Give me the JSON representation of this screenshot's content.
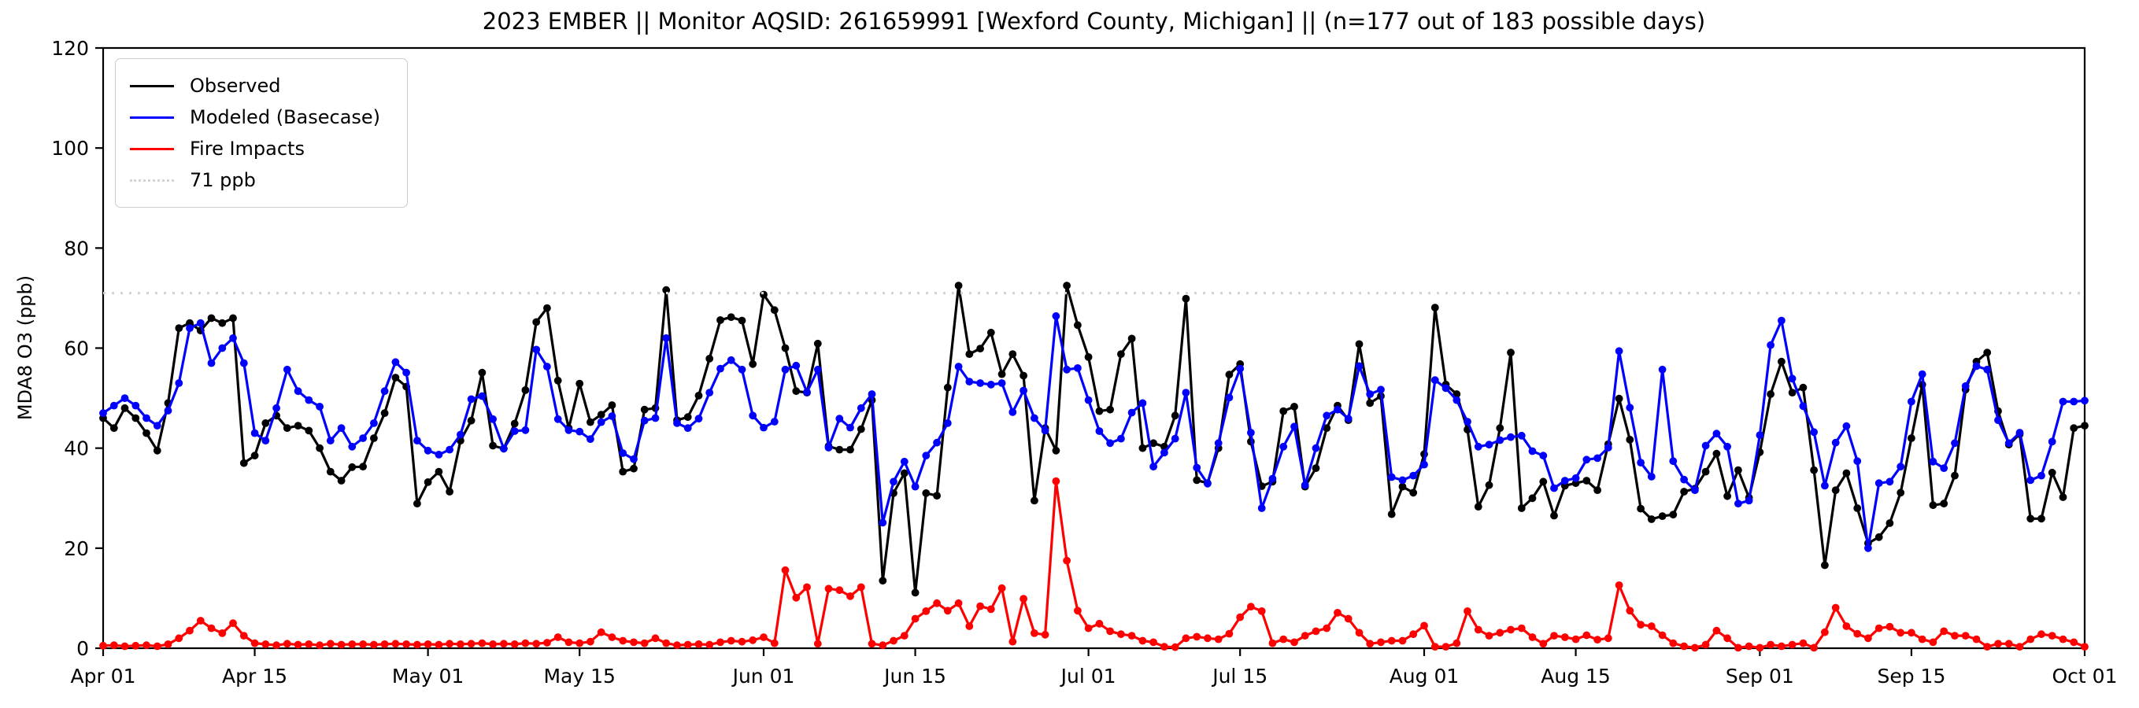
{
  "title": "2023 EMBER || Monitor AQSID: 261659991 [Wexford County, Michigan] || (n=177 out of 183 possible days)",
  "y_axis": {
    "label": "MDA8 O3 (ppb)",
    "min": 0,
    "max": 120,
    "ticks": [
      0,
      20,
      40,
      60,
      80,
      100,
      120
    ]
  },
  "x_axis": {
    "x_unit": "days since Apr 01, 2023",
    "total_days": 183,
    "ticks": [
      {
        "label": "Apr 01",
        "day": 0
      },
      {
        "label": "Apr 15",
        "day": 14
      },
      {
        "label": "May 01",
        "day": 30
      },
      {
        "label": "May 15",
        "day": 44
      },
      {
        "label": "Jun 01",
        "day": 61
      },
      {
        "label": "Jun 15",
        "day": 75
      },
      {
        "label": "Jul 01",
        "day": 91
      },
      {
        "label": "Jul 15",
        "day": 105
      },
      {
        "label": "Aug 01",
        "day": 122
      },
      {
        "label": "Aug 15",
        "day": 136
      },
      {
        "label": "Sep 01",
        "day": 153
      },
      {
        "label": "Sep 15",
        "day": 167
      },
      {
        "label": "Oct 01",
        "day": 183
      }
    ]
  },
  "threshold": {
    "value": 71,
    "label": "71 ppb",
    "color": "#d3d3d3",
    "style": "dotted"
  },
  "legend": {
    "items": [
      {
        "label": "Observed",
        "color": "#000000",
        "style": "solid"
      },
      {
        "label": "Modeled (Basecase)",
        "color": "#0000ff",
        "style": "solid"
      },
      {
        "label": "Fire Impacts",
        "color": "#ff0000",
        "style": "solid"
      },
      {
        "label": "71 ppb",
        "color": "#d3d3d3",
        "style": "dotted"
      }
    ]
  },
  "chart_data": {
    "type": "line",
    "title": "2023 EMBER || Monitor AQSID: 261659991 [Wexford County, Michigan] || (n=177 out of 183 possible days)",
    "xlabel": "",
    "ylabel": "MDA8 O3 (ppb)",
    "ylim": [
      0,
      120
    ],
    "x_unit": "day index from Apr 01 2023 (0) to Oct 01 2023 (183)",
    "grid": false,
    "legend_position": "upper left",
    "markers": true,
    "series": [
      {
        "name": "Observed",
        "color": "#000000",
        "values": [
          46,
          44,
          48,
          46,
          43,
          39.5,
          49,
          64,
          65,
          63.5,
          66,
          65,
          66,
          37,
          38.5,
          45,
          46.5,
          44,
          44.5,
          43.5,
          40,
          35.3,
          33.5,
          36.2,
          36.3,
          42,
          47,
          54.1,
          52.3,
          28.9,
          33.2,
          35.3,
          31.3,
          41.5,
          45.5,
          55.1,
          40.5,
          39.9,
          44.9,
          51.6,
          65.2,
          68,
          53.5,
          44,
          52.9,
          45.2,
          46.7,
          48.6,
          35.3,
          35.9,
          47.7,
          48,
          71.6,
          45.6,
          46.2,
          50.5,
          57.9,
          65.6,
          66.2,
          65.5,
          56.8,
          70.7,
          67.6,
          60,
          51.4,
          51.1,
          60.9,
          40.4,
          39.7,
          39.7,
          43.8,
          49.6,
          13.5,
          31,
          35,
          11.1,
          31,
          30.5,
          52.1,
          72.5,
          58.8,
          59.9,
          63.1,
          54.8,
          58.8,
          54.5,
          29.5,
          44,
          39.5,
          72.5,
          64.6,
          58.2,
          47.4,
          47.7,
          58.8,
          61.9,
          40,
          41,
          40.3,
          46.5,
          69.9,
          33.6,
          33,
          40,
          54.7,
          56.8,
          41.3,
          32.4,
          33.3,
          47.4,
          48.3,
          32.3,
          36,
          44,
          48.5,
          45.6,
          60.8,
          49,
          50.4,
          26.8,
          32.3,
          31.1,
          38.8,
          68.1,
          52.7,
          50.8,
          43.7,
          28.3,
          32.6,
          44,
          59.1,
          28,
          30,
          33.3,
          26.5,
          32.5,
          33,
          33.5,
          31.6,
          40.8,
          49.9,
          41.7,
          27.9,
          25.8,
          26.4,
          26.7,
          31.3,
          31.9,
          35.3,
          38.9,
          30.4,
          35.6,
          30.1,
          39.2,
          50.8,
          57.3,
          51.1,
          52.1,
          35.6,
          16.6,
          31.6,
          35,
          28,
          21,
          22.2,
          25,
          31.1,
          42,
          52.7,
          28.6,
          28.9,
          34.5,
          51.7,
          57.3,
          59.1,
          47.4,
          40.7,
          42.8,
          25.9,
          25.9,
          35.1,
          30.2,
          44,
          44.5
        ]
      },
      {
        "name": "Modeled (Basecase)",
        "color": "#0000ff",
        "values": [
          47,
          48.5,
          50,
          48.5,
          46,
          44.5,
          47.5,
          53,
          64,
          65,
          57,
          60,
          62,
          57,
          43,
          41.5,
          48,
          55.7,
          51.4,
          49.6,
          48.3,
          41.5,
          44,
          40.3,
          42,
          45,
          51.4,
          57.2,
          55.1,
          41.5,
          39.5,
          38.7,
          39.7,
          42.7,
          49.8,
          50.4,
          45.8,
          39.9,
          43.4,
          43.6,
          59.7,
          56.3,
          45.8,
          43.6,
          43.3,
          41.8,
          45.2,
          46.4,
          39,
          37.8,
          45.5,
          46,
          62,
          45,
          44,
          45.9,
          51.1,
          55.9,
          57.6,
          55.7,
          46.5,
          44.1,
          45.3,
          55.7,
          56.5,
          51.2,
          55.7,
          40.1,
          45.9,
          44.1,
          48,
          50.8,
          25.1,
          33.3,
          37.3,
          32.3,
          38.5,
          41.1,
          45,
          56.3,
          53.3,
          53,
          52.7,
          53,
          47.2,
          51.5,
          46,
          43.5,
          66.4,
          55.7,
          56,
          49.6,
          43.4,
          41,
          41.9,
          47.1,
          49,
          36.3,
          39.1,
          41.9,
          51.1,
          36.1,
          32.9,
          41,
          50.1,
          55.9,
          43.1,
          28,
          33.9,
          40.3,
          44.3,
          32.6,
          40,
          46.5,
          47.7,
          45.9,
          56.4,
          50.8,
          51.7,
          34.2,
          33.6,
          34.5,
          36.7,
          53.6,
          52,
          49.6,
          45.3,
          40.3,
          40.7,
          41.6,
          42.2,
          42.5,
          39.4,
          38.5,
          32,
          33.5,
          34,
          37.7,
          38,
          40.1,
          59.4,
          48.1,
          37.1,
          34.3,
          55.7,
          37.4,
          33.7,
          31.6,
          40.5,
          42.9,
          40.3,
          28.9,
          29.5,
          42.6,
          60.6,
          65.5,
          53.9,
          48.4,
          43.2,
          32.5,
          41.1,
          44.4,
          37.4,
          20,
          33,
          33.3,
          36.3,
          49.3,
          54.8,
          37.3,
          36,
          41,
          52.4,
          56.4,
          55.7,
          45.6,
          41,
          43.1,
          33.6,
          34.5,
          41.3,
          49.3,
          49.3,
          49.5
        ]
      },
      {
        "name": "Fire Impacts",
        "color": "#ff0000",
        "values": [
          0.5,
          0.6,
          0.4,
          0.5,
          0.6,
          0.4,
          0.8,
          2,
          3.5,
          5.5,
          4,
          3,
          5,
          2.5,
          1,
          0.8,
          0.6,
          0.9,
          0.7,
          0.8,
          0.6,
          0.9,
          0.7,
          0.8,
          0.8,
          0.7,
          0.8,
          0.9,
          0.8,
          0.7,
          0.8,
          0.7,
          0.9,
          0.8,
          0.9,
          1,
          0.8,
          0.9,
          0.8,
          1,
          0.9,
          1.1,
          2.2,
          1.2,
          1,
          1.3,
          3.2,
          2.2,
          1.5,
          1.2,
          1,
          2,
          1,
          0.6,
          0.7,
          0.8,
          0.7,
          1.2,
          1.5,
          1.3,
          1.6,
          2.2,
          1,
          15.6,
          10.1,
          12.2,
          0.9,
          11.9,
          11.6,
          10.4,
          12.2,
          0.9,
          0.6,
          1.5,
          2.5,
          5.9,
          7.4,
          9,
          7.5,
          9,
          4.4,
          8.4,
          7.8,
          12,
          1.3,
          9.9,
          3,
          2.7,
          33.4,
          17.5,
          7.5,
          4,
          4.9,
          3.4,
          2.8,
          2.5,
          1.5,
          1.2,
          0.3,
          0.2,
          2,
          2.3,
          2,
          1.8,
          2.9,
          6.2,
          8.3,
          7.4,
          1,
          1.8,
          1.2,
          2.5,
          3.4,
          4,
          7.1,
          5.9,
          3.1,
          0.9,
          1.2,
          1.5,
          1.5,
          2.8,
          4.5,
          0.3,
          0.3,
          1,
          7.4,
          3.7,
          2.5,
          3.1,
          3.7,
          4,
          2.2,
          0.9,
          2.5,
          2.2,
          1.8,
          2.6,
          1.7,
          2,
          12.6,
          7.5,
          4.7,
          4.4,
          2.6,
          1,
          0.4,
          0.1,
          0.7,
          3.5,
          2,
          0.1,
          0.4,
          0.1,
          0.7,
          0.4,
          0.7,
          1,
          0.1,
          3.2,
          8.1,
          4.4,
          2.9,
          2,
          4,
          4.3,
          3.1,
          3.1,
          1.8,
          1.2,
          3.4,
          2.5,
          2.5,
          1.8,
          0.3,
          0.9,
          0.9,
          0.3,
          1.8,
          2.8,
          2.5,
          1.8,
          1.2,
          0.3
        ]
      }
    ],
    "threshold_line": {
      "value": 71,
      "label": "71 ppb"
    }
  }
}
